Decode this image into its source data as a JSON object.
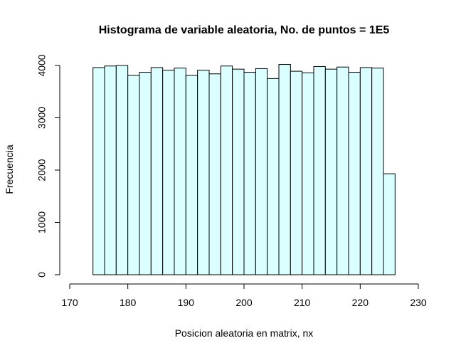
{
  "chart_data": {
    "type": "bar",
    "title": "Histograma de variable aleatoria, No. de puntos =  1E5",
    "xlabel": "Posicion aleatoria en matrix, nx",
    "ylabel": "Frecuencia",
    "xlim": [
      170,
      230
    ],
    "ylim": [
      0,
      4000
    ],
    "x_ticks": [
      "170",
      "180",
      "190",
      "200",
      "210",
      "220",
      "230"
    ],
    "y_ticks": [
      "0",
      "1000",
      "2000",
      "3000",
      "4000"
    ],
    "bin_width": 2,
    "bin_starts": [
      174,
      176,
      178,
      180,
      182,
      184,
      186,
      188,
      190,
      192,
      194,
      196,
      198,
      200,
      202,
      204,
      206,
      208,
      210,
      212,
      214,
      216,
      218,
      220,
      222,
      224
    ],
    "values": [
      3960,
      3990,
      4000,
      3810,
      3870,
      3960,
      3910,
      3950,
      3810,
      3910,
      3840,
      3990,
      3930,
      3870,
      3940,
      3750,
      4020,
      3890,
      3860,
      3980,
      3930,
      3970,
      3870,
      3960,
      3950,
      1930
    ],
    "bar_color": "#dbffff",
    "grid": false,
    "legend": false
  }
}
